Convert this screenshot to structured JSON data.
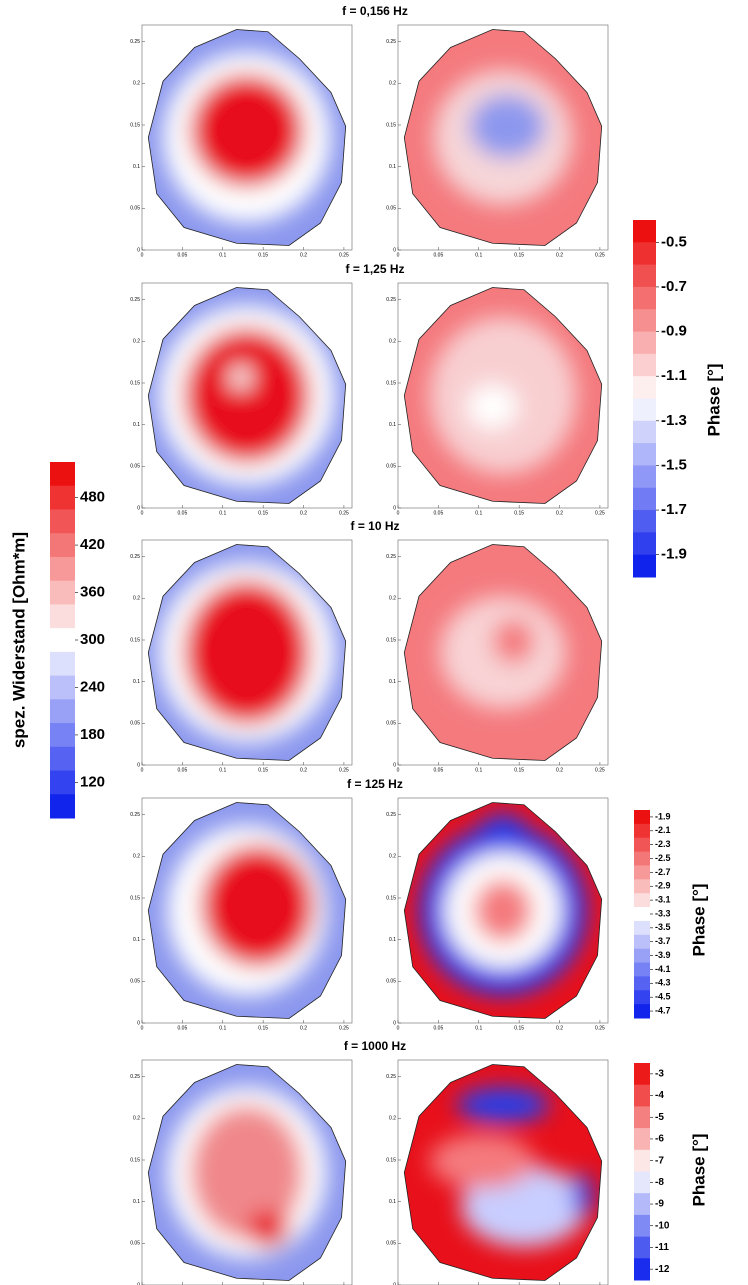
{
  "panels": [
    {
      "title": "f = 0,156 Hz"
    },
    {
      "title": "f = 1,25 Hz"
    },
    {
      "title": "f = 10 Hz"
    },
    {
      "title": "f = 125 Hz"
    },
    {
      "title": "f = 1000 Hz"
    }
  ],
  "map_axes": {
    "xlim": [
      0,
      0.26
    ],
    "ylim": [
      0,
      0.27
    ],
    "xticks": [
      0,
      0.05,
      0.1,
      0.15,
      0.2,
      0.25
    ],
    "yticks": [
      0,
      0.05,
      0.1,
      0.15,
      0.2,
      0.25
    ]
  },
  "colorbars": [
    {
      "label": "Phase [°]",
      "ylim": [
        -2.0,
        -0.4
      ],
      "ticks": [
        -0.5,
        -0.7,
        -0.9,
        -1.1,
        -1.3,
        -1.5,
        -1.7,
        -1.9
      ]
    },
    {
      "label": "spez. Widerstand [Ohm*m]",
      "ylim": [
        75,
        525
      ],
      "ticks": [
        480,
        420,
        360,
        300,
        240,
        180,
        120
      ]
    },
    {
      "label": "Phase [°]",
      "ylim": [
        -4.8,
        -1.8
      ],
      "ticks": [
        -1.9,
        -2.1,
        -2.3,
        -2.5,
        -2.7,
        -2.9,
        -3.1,
        -3.3,
        -3.5,
        -3.7,
        -3.9,
        -4.1,
        -4.3,
        -4.5,
        -4.7
      ]
    },
    {
      "label": "Phase [°]",
      "ylim": [
        -12.5,
        -2.5
      ],
      "ticks": [
        -3,
        -4,
        -5,
        -6,
        -7,
        -8,
        -9,
        -10,
        -11,
        -12
      ]
    }
  ]
}
